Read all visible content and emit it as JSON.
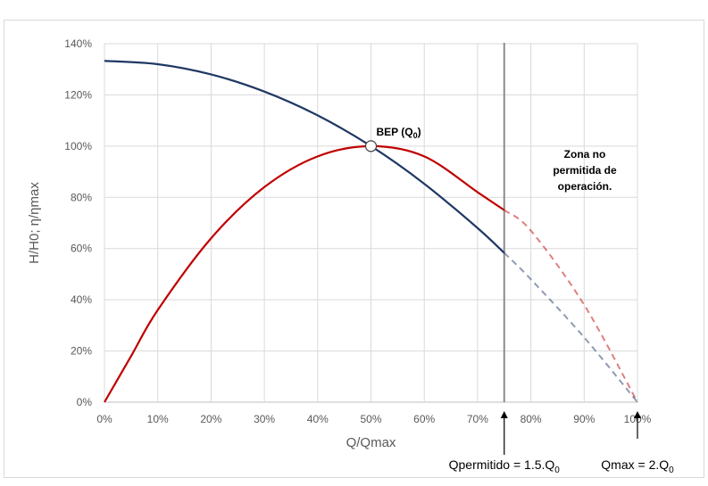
{
  "chart_data": {
    "type": "line",
    "xlabel": "Q/Qmax",
    "ylabel": "H/H0; η/ηmax",
    "xlim": [
      0,
      100
    ],
    "ylim": [
      0,
      140
    ],
    "x_ticks": [
      "0%",
      "10%",
      "20%",
      "30%",
      "40%",
      "50%",
      "60%",
      "70%",
      "80%",
      "90%",
      "100%"
    ],
    "y_ticks": [
      "0%",
      "20%",
      "40%",
      "60%",
      "80%",
      "100%",
      "120%",
      "140%"
    ],
    "grid": true,
    "legend": "none",
    "series": [
      {
        "color": "#1f3864",
        "solid": [
          [
            0,
            133.3
          ],
          [
            10,
            132
          ],
          [
            20,
            128
          ],
          [
            30,
            121.3
          ],
          [
            40,
            112
          ],
          [
            50,
            100
          ],
          [
            60,
            85.3
          ],
          [
            70,
            68
          ],
          [
            75,
            58.3
          ]
        ],
        "dashed": [
          [
            75,
            58.3
          ],
          [
            80,
            48
          ],
          [
            90,
            25.3
          ],
          [
            100,
            0
          ]
        ]
      },
      {
        "color": "#c00000",
        "solid": [
          [
            0,
            0
          ],
          [
            5,
            18
          ],
          [
            10,
            36
          ],
          [
            20,
            64
          ],
          [
            30,
            84
          ],
          [
            40,
            96
          ],
          [
            50,
            100
          ],
          [
            60,
            96
          ],
          [
            70,
            82
          ],
          [
            75,
            75
          ]
        ],
        "dashed": [
          [
            75,
            75
          ],
          [
            80,
            67
          ],
          [
            90,
            38
          ],
          [
            100,
            0
          ]
        ]
      }
    ],
    "bep": {
      "x": 50,
      "y": 100,
      "label": "BEP (Q",
      "sub": "0",
      "suffix": ")"
    },
    "limit_x": 75,
    "zone_label": [
      "Zona no",
      "permitida de",
      "operación."
    ],
    "markers": [
      {
        "x": 75,
        "label": "Qpermitido = 1.5.Q",
        "sub": "0"
      },
      {
        "x": 100,
        "label": "Qmax = 2.Q",
        "sub": "0"
      }
    ]
  }
}
